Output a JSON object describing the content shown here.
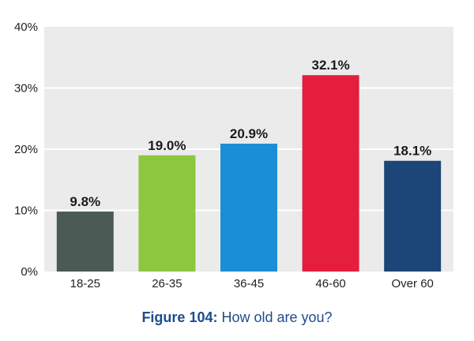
{
  "chart_data": {
    "type": "bar",
    "categories": [
      "18-25",
      "26-35",
      "36-45",
      "46-60",
      "Over 60"
    ],
    "values": [
      9.8,
      19.0,
      20.9,
      32.1,
      18.1
    ],
    "value_labels": [
      "9.8%",
      "19.0%",
      "20.9%",
      "32.1%",
      "18.1%"
    ],
    "colors": [
      "#4b5a55",
      "#8dc63f",
      "#1a8fd6",
      "#e41e3c",
      "#1b4677"
    ],
    "ylim": [
      0,
      40
    ],
    "yticks": [
      0,
      10,
      20,
      30,
      40
    ],
    "ytick_labels": [
      "0%",
      "10%",
      "20%",
      "30%",
      "40%"
    ],
    "grid": true,
    "background": "#ebebeb",
    "grid_color": "#ffffff",
    "legend": "none"
  },
  "caption": {
    "figure": "Figure 104:",
    "text": " How old are you?",
    "color": "#1d4d8c"
  }
}
